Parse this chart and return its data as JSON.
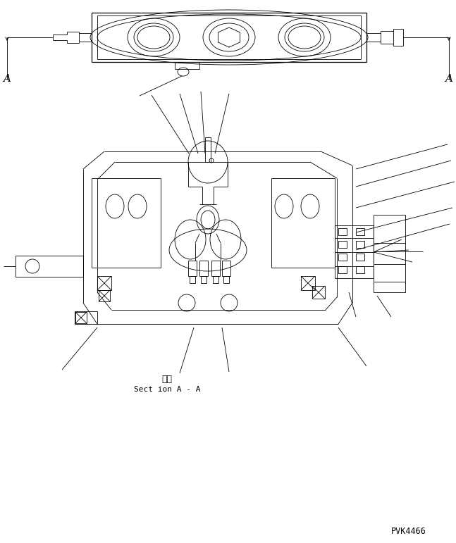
{
  "background_color": "#ffffff",
  "line_color": "#000000",
  "fig_width": 6.47,
  "fig_height": 7.71,
  "dpi": 100,
  "label_A_left": "A",
  "label_A_right": "A",
  "section_label_jp": "断面",
  "section_label_en": "Sect ion A - A",
  "part_number": "PVK4466",
  "lw": 0.6,
  "lw_thick": 0.9
}
